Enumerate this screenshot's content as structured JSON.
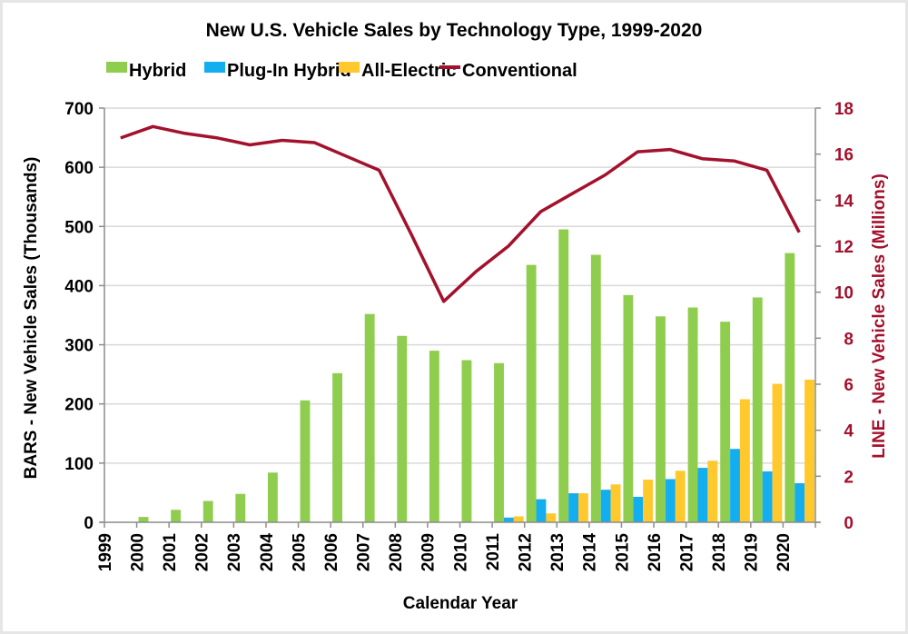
{
  "chart_data": {
    "type": "bar",
    "title": "New U.S. Vehicle Sales by Technology Type, 1999-2020",
    "xlabel": "Calendar Year",
    "ylabel": "BARS - New Vehicle Sales (Thousands)",
    "y2label": "LINE - New Vehicle Sales (Millions)",
    "ylim": [
      0,
      700
    ],
    "y2lim": [
      0,
      18
    ],
    "yticks": [
      0,
      100,
      200,
      300,
      400,
      500,
      600,
      700
    ],
    "y2ticks": [
      0,
      2,
      4,
      6,
      8,
      10,
      12,
      14,
      16,
      18
    ],
    "grid": true,
    "legend_position": "top",
    "categories": [
      "1999",
      "2000",
      "2001",
      "2002",
      "2003",
      "2004",
      "2005",
      "2006",
      "2007",
      "2008",
      "2009",
      "2010",
      "2011",
      "2012",
      "2013",
      "2014",
      "2015",
      "2016",
      "2017",
      "2018",
      "2019",
      "2020"
    ],
    "series": [
      {
        "name": "Hybrid",
        "type": "bar",
        "axis": "left",
        "color": "#8fcd4f",
        "values": [
          0,
          9,
          21,
          36,
          48,
          84,
          206,
          252,
          352,
          315,
          290,
          274,
          269,
          435,
          495,
          452,
          384,
          348,
          363,
          339,
          380,
          455
        ]
      },
      {
        "name": "Plug-In Hybrid",
        "type": "bar",
        "axis": "left",
        "color": "#12aef0",
        "values": [
          0,
          0,
          0,
          0,
          0,
          0,
          0,
          0,
          0,
          0,
          0,
          0,
          8,
          39,
          49,
          55,
          43,
          73,
          92,
          124,
          86,
          66
        ]
      },
      {
        "name": "All-Electric",
        "type": "bar",
        "axis": "left",
        "color": "#ffc82c",
        "values": [
          0,
          0,
          0,
          0,
          0,
          0,
          0,
          0,
          0,
          0,
          0,
          0,
          10,
          15,
          49,
          64,
          72,
          87,
          104,
          208,
          234,
          241
        ]
      },
      {
        "name": "Conventional",
        "type": "line",
        "axis": "right",
        "color": "#a3112c",
        "values": [
          16.7,
          17.2,
          16.9,
          16.7,
          16.4,
          16.6,
          16.5,
          15.9,
          15.3,
          12.5,
          9.6,
          10.9,
          12.0,
          13.5,
          14.3,
          15.1,
          16.1,
          16.2,
          15.8,
          15.7,
          15.3,
          12.6
        ]
      }
    ]
  },
  "colors": {
    "axis_right_text": "#a3112c",
    "gridline": "#d9d9d9"
  }
}
